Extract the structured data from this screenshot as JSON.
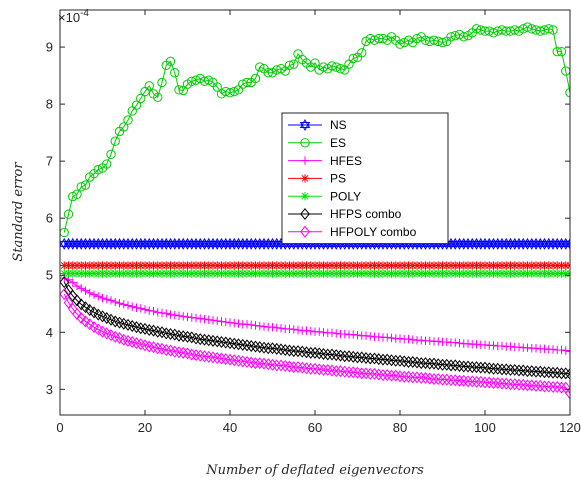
{
  "chart_data": {
    "type": "line",
    "xlabel": "Number of deflated eigenvectors",
    "ylabel": "Standard error",
    "y_exponent_label": "×10",
    "y_exponent_power": "-4",
    "xlim": [
      0,
      120
    ],
    "ylim": [
      2.55,
      9.65
    ],
    "xticks": [
      0,
      20,
      40,
      60,
      80,
      100,
      120
    ],
    "yticks": [
      3,
      4,
      5,
      6,
      7,
      8,
      9
    ],
    "grid": false,
    "legend_position": "center-right",
    "x": [
      1,
      2,
      3,
      4,
      5,
      6,
      7,
      8,
      9,
      10,
      11,
      12,
      13,
      14,
      15,
      16,
      17,
      18,
      19,
      20,
      21,
      22,
      23,
      24,
      25,
      26,
      27,
      28,
      29,
      30,
      31,
      32,
      33,
      34,
      35,
      36,
      37,
      38,
      39,
      40,
      41,
      42,
      43,
      44,
      45,
      46,
      47,
      48,
      49,
      50,
      51,
      52,
      53,
      54,
      55,
      56,
      57,
      58,
      59,
      60,
      61,
      62,
      63,
      64,
      65,
      66,
      67,
      68,
      69,
      70,
      71,
      72,
      73,
      74,
      75,
      76,
      77,
      78,
      79,
      80,
      81,
      82,
      83,
      84,
      85,
      86,
      87,
      88,
      89,
      90,
      91,
      92,
      93,
      94,
      95,
      96,
      97,
      98,
      99,
      100,
      101,
      102,
      103,
      104,
      105,
      106,
      107,
      108,
      109,
      110,
      111,
      112,
      113,
      114,
      115,
      116,
      117,
      118,
      119,
      120
    ],
    "series": [
      {
        "name": "NS",
        "color": "#0000ff",
        "marker": "hexagram",
        "values": [
          5.55,
          5.55,
          5.55,
          5.55,
          5.55,
          5.55,
          5.55,
          5.55,
          5.55,
          5.55,
          5.55,
          5.55,
          5.55,
          5.55,
          5.55,
          5.55,
          5.55,
          5.55,
          5.55,
          5.55,
          5.55,
          5.55,
          5.55,
          5.55,
          5.55,
          5.55,
          5.55,
          5.55,
          5.55,
          5.55,
          5.55,
          5.55,
          5.55,
          5.55,
          5.55,
          5.55,
          5.55,
          5.55,
          5.55,
          5.55,
          5.55,
          5.55,
          5.55,
          5.55,
          5.55,
          5.55,
          5.55,
          5.55,
          5.55,
          5.55,
          5.55,
          5.55,
          5.55,
          5.55,
          5.55,
          5.55,
          5.55,
          5.55,
          5.55,
          5.55,
          5.55,
          5.55,
          5.55,
          5.55,
          5.55,
          5.55,
          5.55,
          5.55,
          5.55,
          5.55,
          5.55,
          5.55,
          5.55,
          5.55,
          5.55,
          5.55,
          5.55,
          5.55,
          5.55,
          5.55,
          5.55,
          5.55,
          5.55,
          5.55,
          5.55,
          5.55,
          5.55,
          5.55,
          5.55,
          5.55,
          5.55,
          5.55,
          5.55,
          5.55,
          5.55,
          5.55,
          5.55,
          5.55,
          5.55,
          5.55,
          5.55,
          5.55,
          5.55,
          5.55,
          5.55,
          5.55,
          5.55,
          5.55,
          5.55,
          5.55,
          5.55,
          5.55,
          5.55,
          5.55,
          5.55,
          5.55,
          5.55,
          5.55,
          5.55,
          5.55
        ]
      },
      {
        "name": "ES",
        "color": "#00cc00",
        "marker": "circle",
        "values": [
          5.75,
          6.07,
          6.38,
          6.42,
          6.55,
          6.58,
          6.72,
          6.78,
          6.85,
          6.88,
          6.95,
          7.12,
          7.35,
          7.52,
          7.6,
          7.72,
          7.88,
          7.98,
          8.1,
          8.22,
          8.32,
          8.18,
          8.12,
          8.38,
          8.68,
          8.75,
          8.55,
          8.25,
          8.24,
          8.35,
          8.4,
          8.42,
          8.45,
          8.4,
          8.42,
          8.38,
          8.3,
          8.18,
          8.22,
          8.2,
          8.22,
          8.25,
          8.35,
          8.38,
          8.38,
          8.45,
          8.65,
          8.62,
          8.55,
          8.55,
          8.6,
          8.62,
          8.58,
          8.68,
          8.7,
          8.88,
          8.78,
          8.72,
          8.65,
          8.72,
          8.6,
          8.65,
          8.62,
          8.67,
          8.65,
          8.62,
          8.6,
          8.7,
          8.8,
          8.82,
          8.9,
          9.1,
          9.15,
          9.12,
          9.15,
          9.15,
          9.12,
          9.18,
          9.12,
          9.05,
          9.08,
          9.12,
          9.08,
          9.15,
          9.18,
          9.12,
          9.1,
          9.12,
          9.1,
          9.08,
          9.1,
          9.18,
          9.2,
          9.22,
          9.18,
          9.2,
          9.25,
          9.32,
          9.3,
          9.28,
          9.28,
          9.25,
          9.28,
          9.3,
          9.28,
          9.28,
          9.3,
          9.28,
          9.32,
          9.35,
          9.32,
          9.3,
          9.28,
          9.3,
          9.32,
          9.3,
          8.92,
          8.92,
          8.58,
          8.2
        ]
      },
      {
        "name": "HFES",
        "color": "#ff00ff",
        "marker": "plus",
        "values": [
          4.95,
          4.92,
          4.87,
          4.81,
          4.77,
          4.73,
          4.69,
          4.66,
          4.63,
          4.6,
          4.58,
          4.56,
          4.53,
          4.51,
          4.49,
          4.47,
          4.45,
          4.43,
          4.42,
          4.4,
          4.38,
          4.37,
          4.35,
          4.34,
          4.33,
          4.31,
          4.3,
          4.29,
          4.28,
          4.27,
          4.26,
          4.25,
          4.24,
          4.23,
          4.22,
          4.21,
          4.2,
          4.19,
          4.18,
          4.17,
          4.16,
          4.15,
          4.14,
          4.14,
          4.13,
          4.12,
          4.11,
          4.1,
          4.09,
          4.09,
          4.08,
          4.07,
          4.06,
          4.06,
          4.05,
          4.04,
          4.03,
          4.03,
          4.02,
          4.01,
          4.01,
          4,
          3.99,
          3.99,
          3.98,
          3.97,
          3.97,
          3.96,
          3.96,
          3.95,
          3.94,
          3.94,
          3.93,
          3.92,
          3.92,
          3.91,
          3.91,
          3.9,
          3.89,
          3.89,
          3.88,
          3.88,
          3.87,
          3.86,
          3.86,
          3.85,
          3.85,
          3.84,
          3.84,
          3.83,
          3.83,
          3.82,
          3.82,
          3.81,
          3.8,
          3.8,
          3.79,
          3.79,
          3.78,
          3.78,
          3.77,
          3.77,
          3.76,
          3.76,
          3.75,
          3.75,
          3.74,
          3.74,
          3.73,
          3.73,
          3.72,
          3.72,
          3.71,
          3.71,
          3.7,
          3.7,
          3.69,
          3.69,
          3.68,
          3.66
        ]
      },
      {
        "name": "PS",
        "color": "#ff0000",
        "marker": "asterisk",
        "values": [
          5.17,
          5.17,
          5.17,
          5.17,
          5.17,
          5.17,
          5.17,
          5.17,
          5.17,
          5.17,
          5.17,
          5.17,
          5.17,
          5.17,
          5.17,
          5.17,
          5.17,
          5.17,
          5.17,
          5.17,
          5.17,
          5.17,
          5.17,
          5.17,
          5.17,
          5.17,
          5.17,
          5.17,
          5.17,
          5.17,
          5.17,
          5.17,
          5.17,
          5.17,
          5.17,
          5.17,
          5.17,
          5.17,
          5.17,
          5.17,
          5.17,
          5.17,
          5.17,
          5.17,
          5.17,
          5.17,
          5.17,
          5.17,
          5.17,
          5.17,
          5.17,
          5.17,
          5.17,
          5.17,
          5.17,
          5.17,
          5.17,
          5.17,
          5.17,
          5.17,
          5.17,
          5.17,
          5.17,
          5.17,
          5.17,
          5.17,
          5.17,
          5.17,
          5.17,
          5.17,
          5.17,
          5.17,
          5.17,
          5.17,
          5.17,
          5.17,
          5.17,
          5.17,
          5.17,
          5.17,
          5.17,
          5.17,
          5.17,
          5.17,
          5.17,
          5.17,
          5.17,
          5.17,
          5.17,
          5.17,
          5.17,
          5.17,
          5.17,
          5.17,
          5.17,
          5.17,
          5.17,
          5.17,
          5.17,
          5.17,
          5.17,
          5.17,
          5.17,
          5.17,
          5.17,
          5.17,
          5.17,
          5.17,
          5.17,
          5.17,
          5.17,
          5.17,
          5.17,
          5.17,
          5.17,
          5.17,
          5.17,
          5.17,
          5.17,
          5.17
        ]
      },
      {
        "name": "POLY",
        "color": "#00e000",
        "marker": "asterisk",
        "values": [
          5.03,
          5.03,
          5.03,
          5.03,
          5.03,
          5.03,
          5.03,
          5.03,
          5.03,
          5.03,
          5.03,
          5.03,
          5.03,
          5.03,
          5.03,
          5.03,
          5.03,
          5.03,
          5.03,
          5.03,
          5.03,
          5.03,
          5.03,
          5.03,
          5.03,
          5.03,
          5.03,
          5.03,
          5.03,
          5.03,
          5.03,
          5.03,
          5.03,
          5.03,
          5.03,
          5.03,
          5.03,
          5.03,
          5.03,
          5.03,
          5.03,
          5.03,
          5.03,
          5.03,
          5.03,
          5.03,
          5.03,
          5.03,
          5.03,
          5.03,
          5.03,
          5.03,
          5.03,
          5.03,
          5.03,
          5.03,
          5.03,
          5.03,
          5.03,
          5.03,
          5.03,
          5.03,
          5.03,
          5.03,
          5.03,
          5.03,
          5.03,
          5.03,
          5.03,
          5.03,
          5.03,
          5.03,
          5.03,
          5.03,
          5.03,
          5.03,
          5.03,
          5.03,
          5.03,
          5.03,
          5.03,
          5.03,
          5.03,
          5.03,
          5.03,
          5.03,
          5.03,
          5.03,
          5.03,
          5.03,
          5.03,
          5.03,
          5.03,
          5.03,
          5.03,
          5.03,
          5.03,
          5.03,
          5.03,
          5.03,
          5.03,
          5.03,
          5.03,
          5.03,
          5.03,
          5.03,
          5.03,
          5.03,
          5.03,
          5.03,
          5.03,
          5.03,
          5.03,
          5.03,
          5.03,
          5.03,
          5.03,
          5.03,
          5.03,
          5.03
        ]
      },
      {
        "name": "HFPS combo",
        "color": "#000000",
        "marker": "diamond",
        "values": [
          4.88,
          4.74,
          4.64,
          4.56,
          4.49,
          4.44,
          4.39,
          4.35,
          4.31,
          4.28,
          4.25,
          4.22,
          4.19,
          4.17,
          4.15,
          4.13,
          4.11,
          4.09,
          4.07,
          4.06,
          4.04,
          4.03,
          4.01,
          4,
          3.98,
          3.97,
          3.96,
          3.94,
          3.93,
          3.92,
          3.91,
          3.89,
          3.88,
          3.87,
          3.86,
          3.85,
          3.84,
          3.83,
          3.82,
          3.81,
          3.8,
          3.79,
          3.78,
          3.77,
          3.76,
          3.75,
          3.74,
          3.73,
          3.72,
          3.72,
          3.71,
          3.7,
          3.69,
          3.68,
          3.67,
          3.67,
          3.66,
          3.65,
          3.64,
          3.64,
          3.63,
          3.62,
          3.61,
          3.61,
          3.6,
          3.59,
          3.58,
          3.58,
          3.57,
          3.56,
          3.56,
          3.55,
          3.54,
          3.54,
          3.53,
          3.52,
          3.52,
          3.51,
          3.5,
          3.5,
          3.49,
          3.48,
          3.48,
          3.47,
          3.46,
          3.46,
          3.45,
          3.45,
          3.44,
          3.43,
          3.43,
          3.42,
          3.42,
          3.41,
          3.4,
          3.4,
          3.39,
          3.39,
          3.38,
          3.38,
          3.37,
          3.36,
          3.36,
          3.35,
          3.35,
          3.34,
          3.34,
          3.33,
          3.33,
          3.32,
          3.32,
          3.31,
          3.31,
          3.3,
          3.3,
          3.29,
          3.29,
          3.28,
          3.28,
          3.27
        ]
      },
      {
        "name": "HFPOLY combo",
        "color": "#ff00ff",
        "marker": "diamond",
        "values": [
          4.67,
          4.52,
          4.41,
          4.32,
          4.25,
          4.19,
          4.14,
          4.09,
          4.05,
          4.01,
          3.98,
          3.95,
          3.92,
          3.9,
          3.87,
          3.85,
          3.83,
          3.81,
          3.79,
          3.77,
          3.75,
          3.74,
          3.72,
          3.71,
          3.69,
          3.68,
          3.66,
          3.65,
          3.64,
          3.63,
          3.61,
          3.6,
          3.59,
          3.58,
          3.57,
          3.56,
          3.55,
          3.54,
          3.53,
          3.52,
          3.51,
          3.5,
          3.49,
          3.48,
          3.47,
          3.46,
          3.46,
          3.45,
          3.44,
          3.43,
          3.42,
          3.42,
          3.41,
          3.4,
          3.39,
          3.39,
          3.38,
          3.37,
          3.36,
          3.36,
          3.35,
          3.34,
          3.34,
          3.33,
          3.32,
          3.32,
          3.31,
          3.3,
          3.3,
          3.29,
          3.28,
          3.28,
          3.27,
          3.27,
          3.26,
          3.25,
          3.25,
          3.24,
          3.24,
          3.23,
          3.22,
          3.22,
          3.21,
          3.21,
          3.2,
          3.2,
          3.19,
          3.18,
          3.18,
          3.17,
          3.17,
          3.16,
          3.16,
          3.15,
          3.15,
          3.14,
          3.14,
          3.13,
          3.13,
          3.12,
          3.12,
          3.11,
          3.11,
          3.1,
          3.1,
          3.09,
          3.09,
          3.08,
          3.08,
          3.07,
          3.07,
          3.06,
          3.06,
          3.05,
          3.05,
          3.04,
          3.04,
          3.03,
          3.03,
          2.93
        ]
      }
    ]
  }
}
